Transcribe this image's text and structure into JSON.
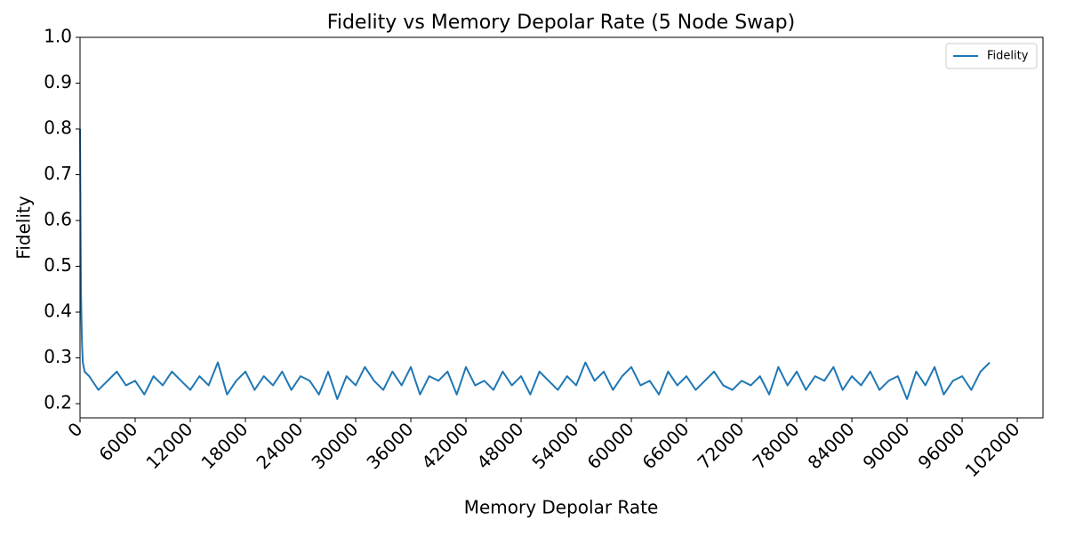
{
  "chart_data": {
    "type": "line",
    "title": "Fidelity vs Memory Depolar Rate (5 Node Swap)",
    "x_label": "Memory Depolar Rate",
    "y_label": "Fidelity",
    "x": [
      0,
      100,
      200,
      300,
      500,
      1000,
      2000,
      3000,
      4000,
      5000,
      6000,
      7000,
      8000,
      9000,
      10000,
      11000,
      12000,
      13000,
      14000,
      15000,
      16000,
      17000,
      18000,
      19000,
      20000,
      21000,
      22000,
      23000,
      24000,
      25000,
      26000,
      27000,
      28000,
      29000,
      30000,
      31000,
      32000,
      33000,
      34000,
      35000,
      36000,
      37000,
      38000,
      39000,
      40000,
      41000,
      42000,
      43000,
      44000,
      45000,
      46000,
      47000,
      48000,
      49000,
      50000,
      51000,
      52000,
      53000,
      54000,
      55000,
      56000,
      57000,
      58000,
      59000,
      60000,
      61000,
      62000,
      63000,
      64000,
      65000,
      66000,
      67000,
      68000,
      69000,
      70000,
      71000,
      72000,
      73000,
      74000,
      75000,
      76000,
      77000,
      78000,
      79000,
      80000,
      81000,
      82000,
      83000,
      84000,
      85000,
      86000,
      87000,
      88000,
      89000,
      90000,
      91000,
      92000,
      93000,
      94000,
      95000,
      96000,
      97000,
      98000,
      99000
    ],
    "series": [
      {
        "name": "Fidelity",
        "color": "#1f77b4",
        "values": [
          0.8,
          0.45,
          0.34,
          0.29,
          0.27,
          0.26,
          0.23,
          0.25,
          0.27,
          0.24,
          0.25,
          0.22,
          0.26,
          0.24,
          0.27,
          0.25,
          0.23,
          0.26,
          0.24,
          0.29,
          0.22,
          0.25,
          0.27,
          0.23,
          0.26,
          0.24,
          0.27,
          0.23,
          0.26,
          0.25,
          0.22,
          0.27,
          0.21,
          0.26,
          0.24,
          0.28,
          0.25,
          0.23,
          0.27,
          0.24,
          0.28,
          0.22,
          0.26,
          0.25,
          0.27,
          0.22,
          0.28,
          0.24,
          0.25,
          0.23,
          0.27,
          0.24,
          0.26,
          0.22,
          0.27,
          0.25,
          0.23,
          0.26,
          0.24,
          0.29,
          0.25,
          0.27,
          0.23,
          0.26,
          0.28,
          0.24,
          0.25,
          0.22,
          0.27,
          0.24,
          0.26,
          0.23,
          0.25,
          0.27,
          0.24,
          0.23,
          0.25,
          0.24,
          0.26,
          0.22,
          0.28,
          0.24,
          0.27,
          0.23,
          0.26,
          0.25,
          0.28,
          0.23,
          0.26,
          0.24,
          0.27,
          0.23,
          0.25,
          0.26,
          0.21,
          0.27,
          0.24,
          0.28,
          0.22,
          0.25,
          0.26,
          0.23,
          0.27,
          0.29
        ]
      }
    ],
    "xlim": [
      0,
      104800
    ],
    "ylim": [
      0.169,
      1.0
    ],
    "xticks": [
      0,
      6000,
      12000,
      18000,
      24000,
      30000,
      36000,
      42000,
      48000,
      54000,
      60000,
      66000,
      72000,
      78000,
      84000,
      90000,
      96000,
      102000
    ],
    "yticks": [
      0.2,
      0.3,
      0.4,
      0.5,
      0.6,
      0.7,
      0.8,
      0.9,
      {
        "value": 1.0,
        "label": "1.0"
      }
    ],
    "legend": "upper right"
  }
}
